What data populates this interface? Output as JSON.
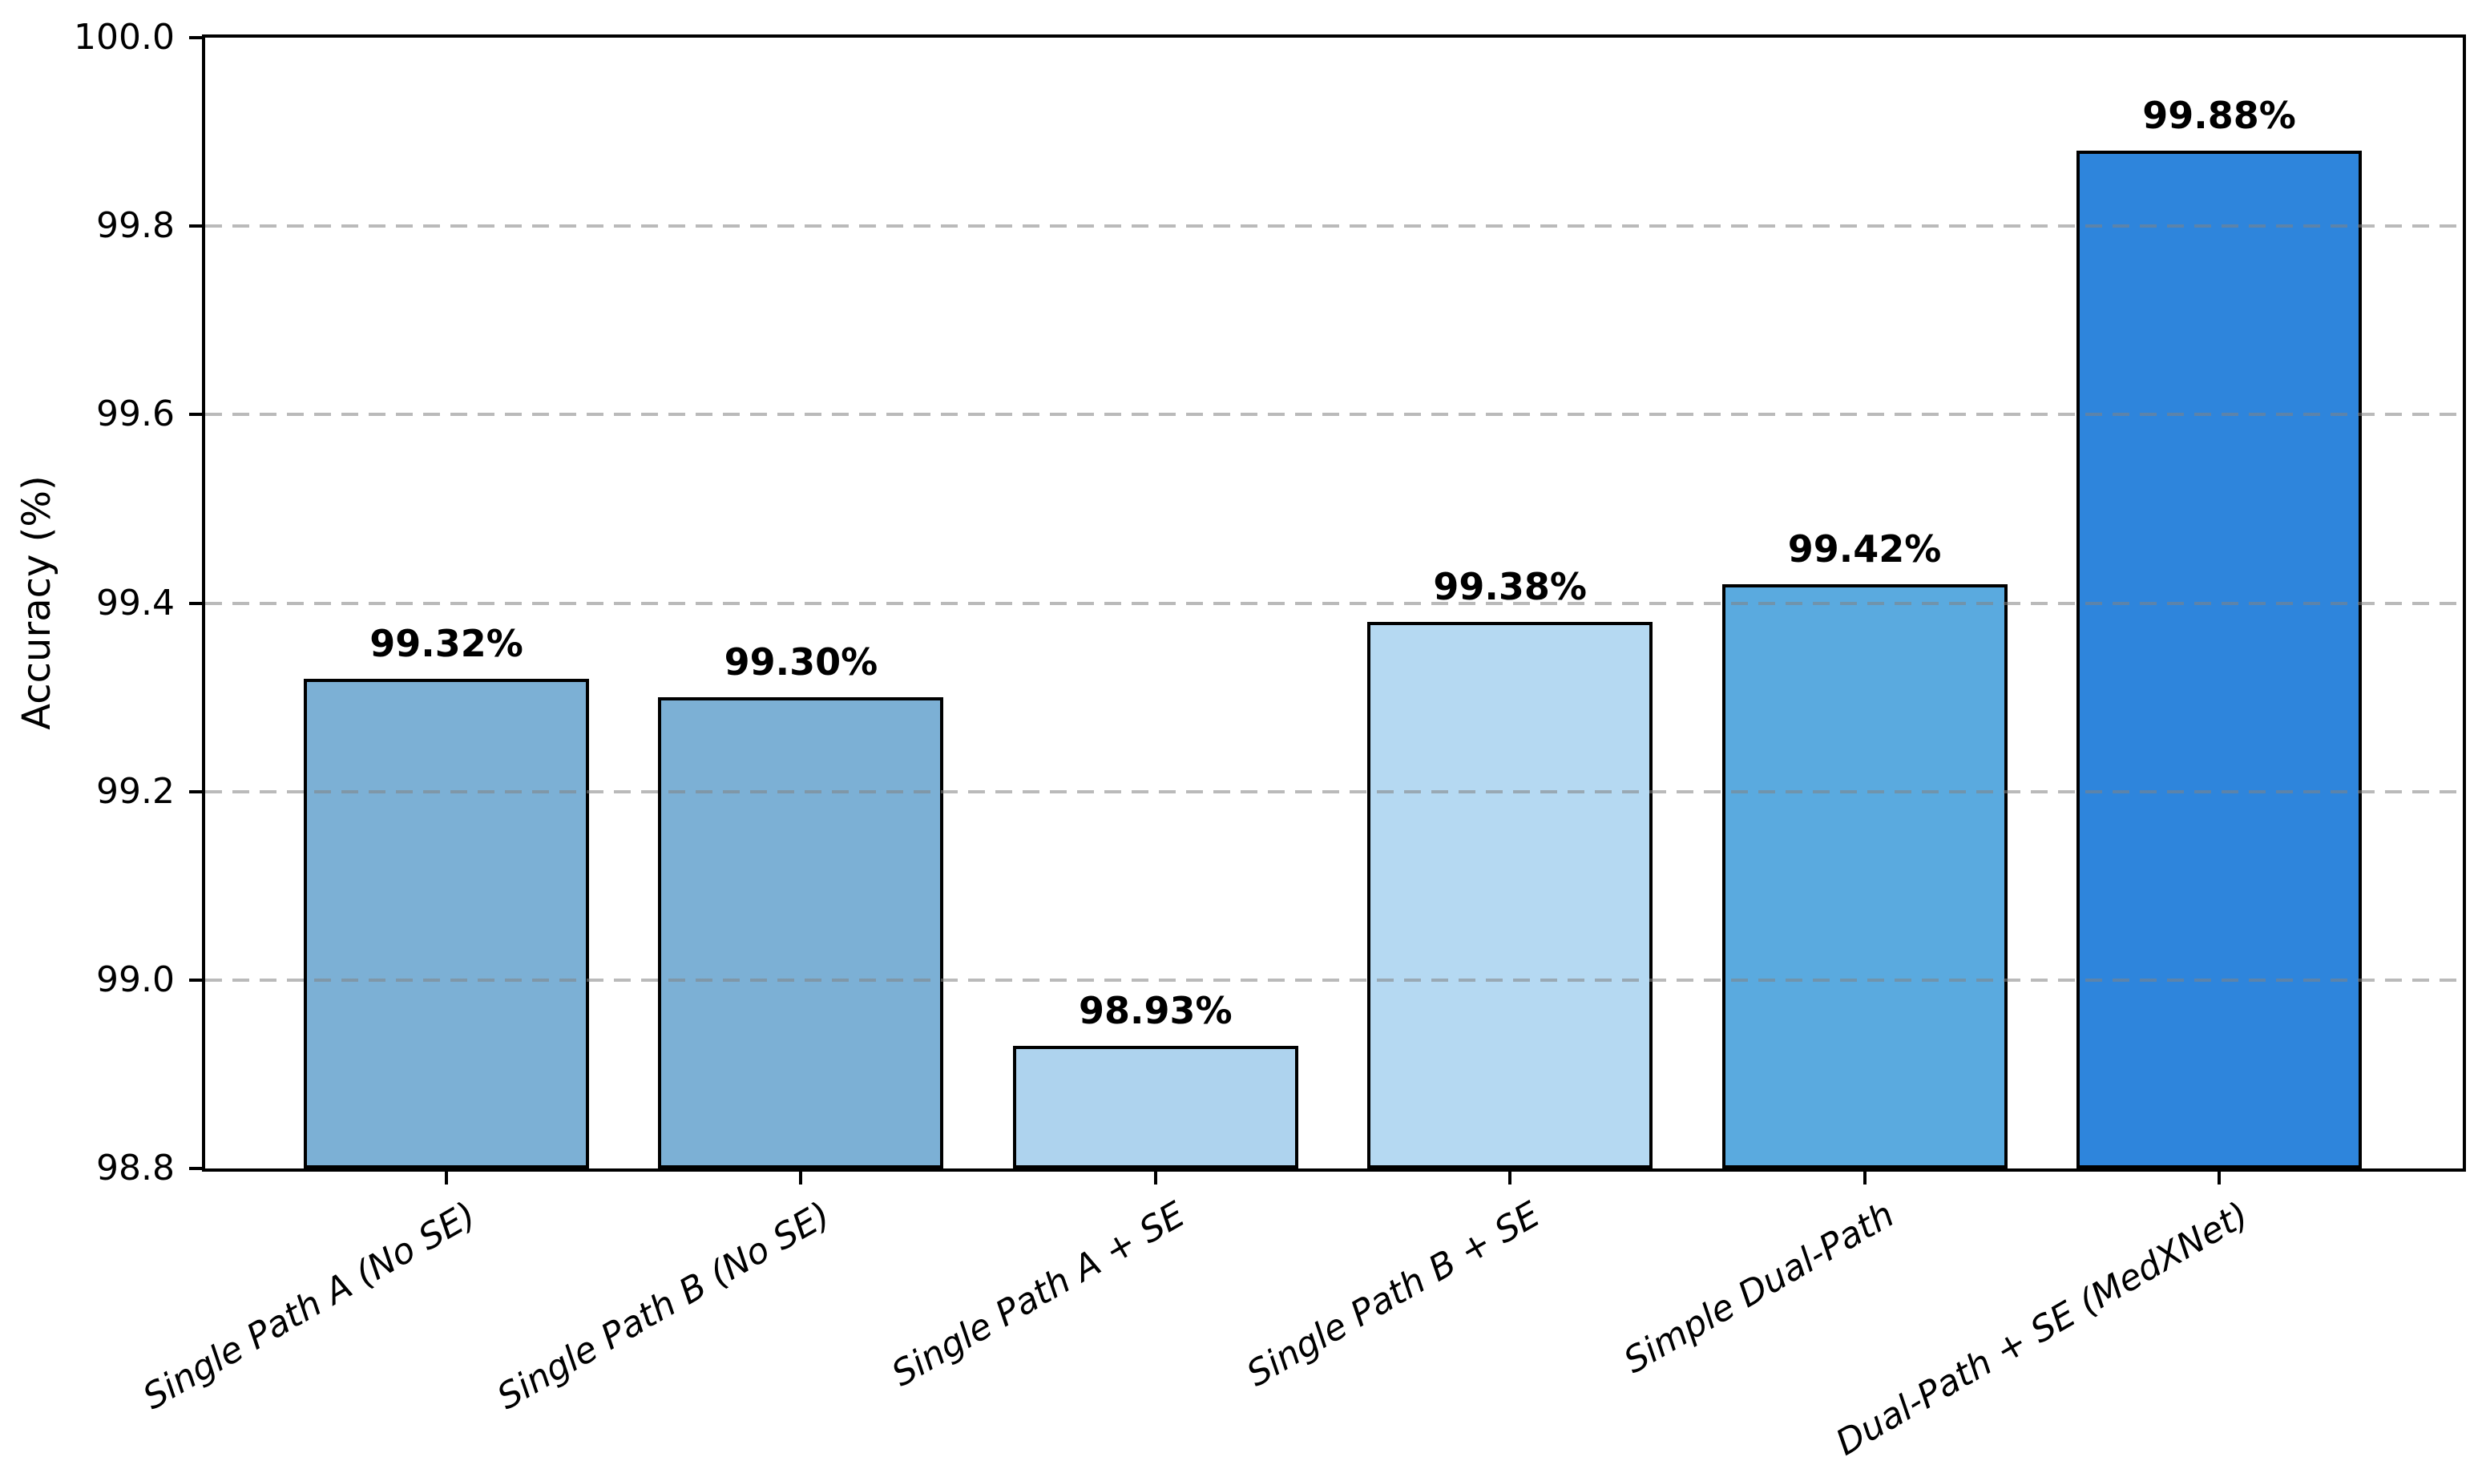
{
  "chart_data": {
    "type": "bar",
    "title": "",
    "xlabel": "",
    "ylabel": "Accuracy (%)",
    "categories": [
      "Single Path A (No SE)",
      "Single Path B (No SE)",
      "Single Path A + SE",
      "Single Path B + SE",
      "Simple Dual-Path",
      "Dual-Path + SE (MedXNet)"
    ],
    "values": [
      99.32,
      99.3,
      98.93,
      99.38,
      99.42,
      99.88
    ],
    "value_labels": [
      "99.32%",
      "99.30%",
      "98.93%",
      "99.38%",
      "99.42%",
      "99.88%"
    ],
    "bar_colors": [
      "#7cb0d5",
      "#7cb0d5",
      "#aed3ee",
      "#b5d9f2",
      "#5aaadf",
      "#2e85dc"
    ],
    "bar_edge_color": "#000000",
    "ylim": [
      98.8,
      100.0
    ],
    "yticks": [
      98.8,
      99.0,
      99.2,
      99.4,
      99.6,
      99.8,
      100.0
    ],
    "ytick_labels": [
      "98.8",
      "99.0",
      "99.2",
      "99.4",
      "99.6",
      "99.8",
      "100.0"
    ],
    "grid": "horizontal dashed, drawn over bars",
    "gridline_color": "#c8c8c8",
    "xtick_rotation_deg": 30,
    "xtick_style": "italic",
    "background_color": "#ffffff",
    "legend": "none"
  }
}
